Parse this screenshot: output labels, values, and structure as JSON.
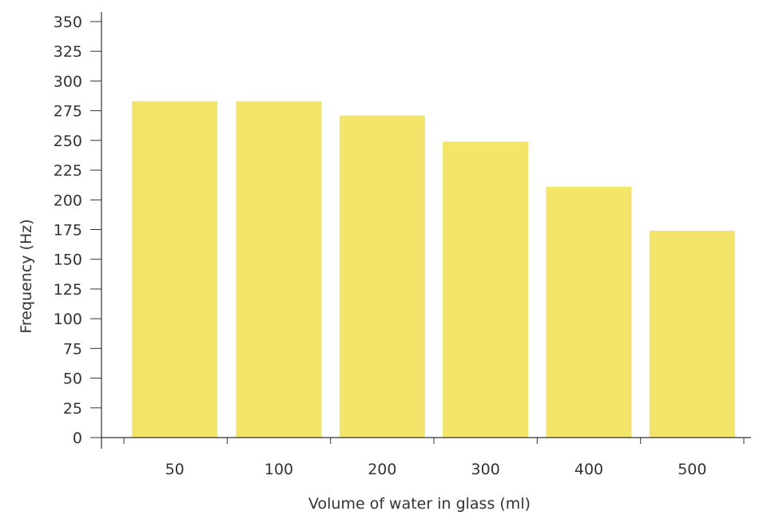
{
  "chart_data": {
    "type": "bar",
    "categories": [
      "50",
      "100",
      "200",
      "300",
      "400",
      "500"
    ],
    "values": [
      283,
      283,
      271,
      249,
      211,
      174
    ],
    "title": "",
    "xlabel": "Volume of water in glass (ml)",
    "ylabel": "Frequency (Hz)",
    "ylim": [
      0,
      350
    ],
    "yticks": [
      0,
      25,
      50,
      75,
      100,
      125,
      150,
      175,
      200,
      225,
      250,
      275,
      300,
      325,
      350
    ],
    "grid": false,
    "legend": "none",
    "bar_color": "#f3e56a",
    "axis_color": "#333333"
  }
}
